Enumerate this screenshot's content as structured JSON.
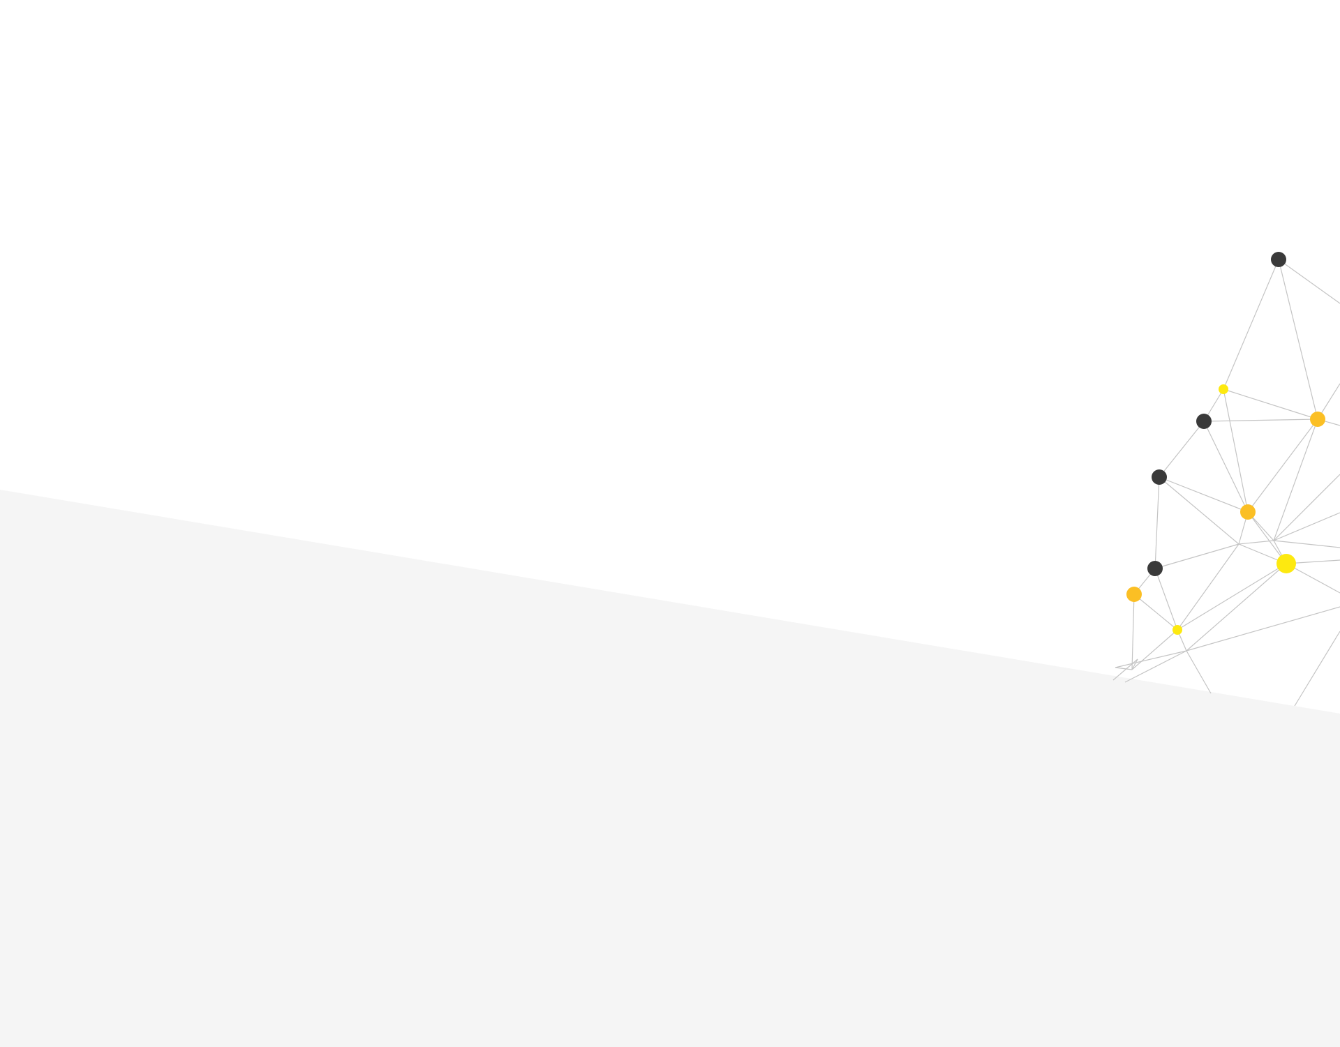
{
  "colors": {
    "background": "#ffffff",
    "lower_panel": "#f5f5f5",
    "edge": "#c4c4c4",
    "node_dark": "#3a3a3a",
    "node_orange": "#fbbf24",
    "node_yellow": "#fde910"
  },
  "graphic": {
    "kind": "decorative node-link network pattern",
    "node_types": [
      "dark",
      "orange",
      "yellow"
    ]
  }
}
